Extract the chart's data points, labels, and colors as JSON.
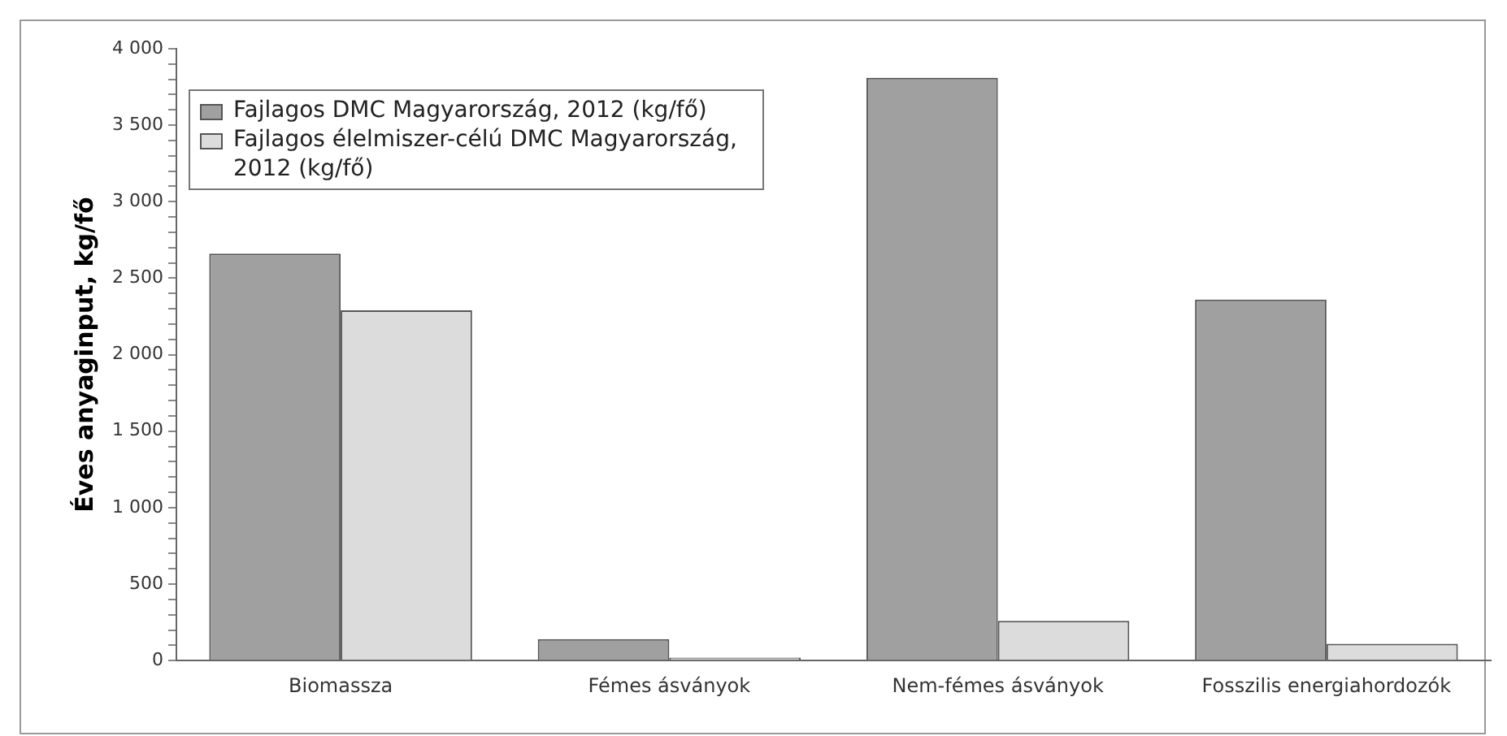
{
  "chart_data": {
    "type": "bar",
    "ylabel": "Éves anyaginput, kg/fő",
    "categories": [
      "Biomassza",
      "Fémes ásványok",
      "Nem-fémes ásványok",
      "Fosszilis energiahordozók"
    ],
    "series": [
      {
        "name": "Fajlagos DMC Magyarország, 2012 (kg/fő)",
        "color": "#a0a0a0",
        "values": [
          2660,
          140,
          3810,
          2360
        ]
      },
      {
        "name": "Fajlagos élelmiszer-célú DMC Magyarország, 2012 (kg/fő)",
        "color": "#dcdcdc",
        "values": [
          2290,
          20,
          260,
          110
        ]
      }
    ],
    "ylim": [
      0,
      4000
    ],
    "yticks": [
      {
        "value": 0,
        "label": "0"
      },
      {
        "value": 100,
        "label": null
      },
      {
        "value": 200,
        "label": null
      },
      {
        "value": 300,
        "label": null
      },
      {
        "value": 400,
        "label": null
      },
      {
        "value": 500,
        "label": "500"
      },
      {
        "value": 600,
        "label": null
      },
      {
        "value": 700,
        "label": null
      },
      {
        "value": 800,
        "label": null
      },
      {
        "value": 900,
        "label": null
      },
      {
        "value": 1000,
        "label": "1 000"
      },
      {
        "value": 1100,
        "label": null
      },
      {
        "value": 1200,
        "label": null
      },
      {
        "value": 1300,
        "label": null
      },
      {
        "value": 1400,
        "label": null
      },
      {
        "value": 1500,
        "label": "1 500"
      },
      {
        "value": 1600,
        "label": null
      },
      {
        "value": 1700,
        "label": null
      },
      {
        "value": 1800,
        "label": null
      },
      {
        "value": 1900,
        "label": null
      },
      {
        "value": 2000,
        "label": "2 000"
      },
      {
        "value": 2100,
        "label": null
      },
      {
        "value": 2200,
        "label": null
      },
      {
        "value": 2300,
        "label": null
      },
      {
        "value": 2400,
        "label": null
      },
      {
        "value": 2500,
        "label": "2 500"
      },
      {
        "value": 2600,
        "label": null
      },
      {
        "value": 2700,
        "label": null
      },
      {
        "value": 2800,
        "label": null
      },
      {
        "value": 2900,
        "label": null
      },
      {
        "value": 3000,
        "label": "3 000"
      },
      {
        "value": 3100,
        "label": null
      },
      {
        "value": 3200,
        "label": null
      },
      {
        "value": 3300,
        "label": null
      },
      {
        "value": 3400,
        "label": null
      },
      {
        "value": 3500,
        "label": "3 500"
      },
      {
        "value": 3600,
        "label": null
      },
      {
        "value": 3700,
        "label": null
      },
      {
        "value": 3800,
        "label": null
      },
      {
        "value": 3900,
        "label": null
      },
      {
        "value": 4000,
        "label": "4 000"
      }
    ],
    "grid": false,
    "legend": "top left"
  }
}
